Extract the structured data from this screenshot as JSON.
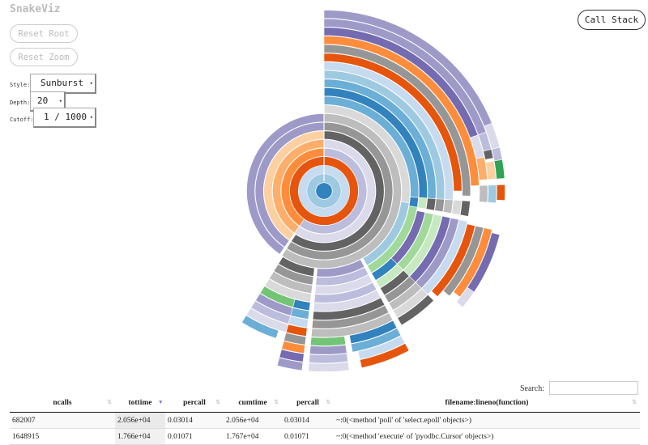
{
  "app_title": "SnakeViz",
  "buttons": {
    "reset_root": "Reset Root",
    "reset_zoom": "Reset Zoom",
    "call_stack": "Call Stack"
  },
  "controls": {
    "style_label": "Style:",
    "style_value": "Sunburst",
    "depth_label": "Depth:",
    "depth_value": "20",
    "cutoff_label": "Cutoff:",
    "cutoff_value": "1 / 1000"
  },
  "search": {
    "label": "Search:",
    "value": ""
  },
  "table": {
    "columns": [
      "ncalls",
      "tottime",
      "percall",
      "cumtime",
      "percall",
      "filename:lineno(function)"
    ],
    "sorted_column": 1,
    "rows": [
      [
        "682007",
        "2.056e+04",
        "0.03014",
        "2.056e+04",
        "0.03014",
        "~:0(<method 'poll' of 'select.epoll' objects>)"
      ],
      [
        "1648915",
        "1.766e+04",
        "0.01071",
        "1.767e+04",
        "0.01071",
        "~:0(<method 'execute' of 'pyodbc.Cursor' objects>)"
      ]
    ]
  },
  "chart_data": {
    "type": "sunburst",
    "angle_units": "share of root cumtime, total = 360",
    "max_depth": 20,
    "segments": [
      [
        0,
        0,
        360,
        "#3182bd"
      ],
      [
        1,
        0,
        360,
        "#9ecae1"
      ],
      [
        2,
        0,
        360,
        "#c6dbef"
      ],
      [
        3,
        0,
        360,
        "#e6550d"
      ],
      [
        4,
        0,
        215,
        "#bcbddc"
      ],
      [
        4,
        215,
        360,
        "#fd8d3c"
      ],
      [
        5,
        0,
        215,
        "#dadaeb"
      ],
      [
        5,
        215,
        360,
        "#fdae6b"
      ],
      [
        6,
        0,
        213,
        "#636363"
      ],
      [
        6,
        215,
        360,
        "#fdd0a2"
      ],
      [
        7,
        0,
        213,
        "#969696"
      ],
      [
        7,
        215,
        360,
        "#9e9ac8"
      ],
      [
        8,
        0,
        213,
        "#bdbdbd"
      ],
      [
        8,
        215,
        360,
        "#9e9ac8"
      ],
      [
        9,
        0,
        98,
        "#d9d9d9"
      ],
      [
        9,
        98,
        150,
        "#9ecae1"
      ],
      [
        9,
        152,
        185,
        "#9e9ac8"
      ],
      [
        9,
        187,
        212,
        "#636363"
      ],
      [
        10,
        0,
        94,
        "#6baed6"
      ],
      [
        10,
        94,
        100,
        "#3182bd"
      ],
      [
        10,
        100,
        150,
        "#a1d99b"
      ],
      [
        10,
        152,
        185,
        "#bcbddc"
      ],
      [
        10,
        187,
        212,
        "#969696"
      ],
      [
        11,
        0,
        94,
        "#3182bd"
      ],
      [
        11,
        94,
        100,
        "#c7e9c0"
      ],
      [
        11,
        102,
        135,
        "#756bb1"
      ],
      [
        11,
        135,
        150,
        "#3182bd"
      ],
      [
        11,
        152,
        185,
        "#dadaeb"
      ],
      [
        11,
        187,
        212,
        "#bdbdbd"
      ],
      [
        12,
        0,
        94,
        "#6baed6"
      ],
      [
        12,
        94,
        100,
        "#636363"
      ],
      [
        12,
        102,
        135,
        "#a1d99b"
      ],
      [
        12,
        135,
        150,
        "#c7e9c0"
      ],
      [
        12,
        152,
        185,
        "#bcbddc"
      ],
      [
        12,
        187,
        212,
        "#d9d9d9"
      ],
      [
        13,
        0,
        94,
        "#9ecae1"
      ],
      [
        13,
        94,
        100,
        "#969696"
      ],
      [
        13,
        102,
        135,
        "#c7e9c0"
      ],
      [
        13,
        135,
        150,
        "#636363"
      ],
      [
        13,
        152,
        185,
        "#dadaeb"
      ],
      [
        13,
        187,
        195,
        "#3182bd"
      ],
      [
        13,
        195,
        212,
        "#74c476"
      ],
      [
        14,
        0,
        94,
        "#c6dbef"
      ],
      [
        14,
        94,
        100,
        "#bdbdbd"
      ],
      [
        14,
        102,
        135,
        "#756bb1"
      ],
      [
        14,
        135,
        150,
        "#969696"
      ],
      [
        14,
        152,
        185,
        "#636363"
      ],
      [
        14,
        187,
        195,
        "#6baed6"
      ],
      [
        14,
        195,
        212,
        "#9e9ac8"
      ],
      [
        15,
        0,
        90,
        "#e6550d"
      ],
      [
        15,
        94,
        100,
        "#d9d9d9"
      ],
      [
        15,
        102,
        135,
        "#9e9ac8"
      ],
      [
        15,
        135,
        150,
        "#bdbdbd"
      ],
      [
        15,
        152,
        185,
        "#969696"
      ],
      [
        15,
        187,
        195,
        "#c6dbef"
      ],
      [
        15,
        195,
        212,
        "#bcbddc"
      ],
      [
        16,
        0,
        92,
        "#969696"
      ],
      [
        16,
        94,
        100,
        "#636363"
      ],
      [
        16,
        102,
        135,
        "#c6dbef"
      ],
      [
        16,
        135,
        150,
        "#d9d9d9"
      ],
      [
        16,
        152,
        185,
        "#bdbdbd"
      ],
      [
        16,
        187,
        195,
        "#e6550d"
      ],
      [
        16,
        195,
        212,
        "#dadaeb"
      ],
      [
        17,
        0,
        88,
        "#fd8d3c"
      ],
      [
        17,
        103,
        133,
        "#e6550d"
      ],
      [
        17,
        135,
        150,
        "#636363"
      ],
      [
        17,
        152,
        170,
        "#3182bd"
      ],
      [
        17,
        172,
        185,
        "#74c476"
      ],
      [
        17,
        187,
        195,
        "#969696"
      ],
      [
        17,
        198,
        212,
        "#6baed6"
      ],
      [
        18,
        0,
        70,
        "#756bb1"
      ],
      [
        18,
        70,
        78,
        "#dadaeb"
      ],
      [
        18,
        78,
        86,
        "#fdae6b"
      ],
      [
        18,
        88,
        94,
        "#bdbdbd"
      ],
      [
        18,
        103,
        130,
        "#969696"
      ],
      [
        18,
        152,
        170,
        "#6baed6"
      ],
      [
        18,
        172,
        185,
        "#9e9ac8"
      ],
      [
        18,
        187,
        195,
        "#fd8d3c"
      ],
      [
        19,
        0,
        70,
        "#9e9ac8"
      ],
      [
        19,
        70,
        76,
        "#bcbddc"
      ],
      [
        19,
        76,
        79,
        "#636363"
      ],
      [
        19,
        80,
        86,
        "#fdd0a2"
      ],
      [
        19,
        88,
        94,
        "#9ecae1"
      ],
      [
        19,
        103,
        128,
        "#fd8d3c"
      ],
      [
        19,
        152,
        168,
        "#c6dbef"
      ],
      [
        19,
        172,
        185,
        "#bcbddc"
      ],
      [
        19,
        187,
        195,
        "#756bb1"
      ],
      [
        20,
        0,
        68,
        "#9e9ac8"
      ],
      [
        20,
        68,
        76,
        "#dadaeb"
      ],
      [
        20,
        76,
        80,
        "#bcbddc"
      ],
      [
        20,
        80,
        86,
        "#31a354"
      ],
      [
        20,
        88,
        93,
        "#e6550d"
      ],
      [
        20,
        104,
        124,
        "#756bb1"
      ],
      [
        20,
        124,
        130,
        "#dadaeb"
      ],
      [
        20,
        152,
        168,
        "#e6550d"
      ],
      [
        20,
        172,
        185,
        "#dadaeb"
      ],
      [
        20,
        187,
        195,
        "#9e9ac8"
      ]
    ]
  }
}
